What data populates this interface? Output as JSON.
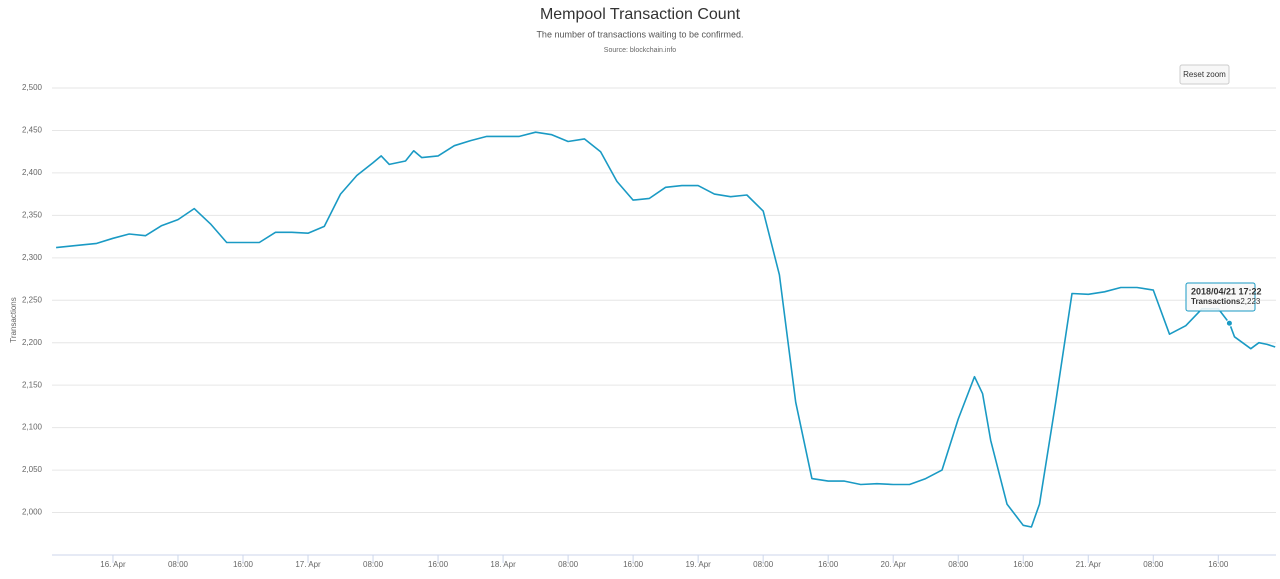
{
  "chart_data": {
    "type": "line",
    "title": "Mempool Transaction Count",
    "subtitle": "The number of transactions waiting to be confirmed.",
    "source": "Source: blockchain.info",
    "ylabel": "Transactions",
    "reset_zoom": "Reset zoom",
    "grid": true,
    "xlim": [
      "2018-04-15T16:30",
      "2018-04-21T23:06"
    ],
    "xticks": [
      {
        "value": "2018-04-16T00:00",
        "label": "16. Apr"
      },
      {
        "value": "2018-04-16T08:00",
        "label": "08:00"
      },
      {
        "value": "2018-04-16T16:00",
        "label": "16:00"
      },
      {
        "value": "2018-04-17T00:00",
        "label": "17. Apr"
      },
      {
        "value": "2018-04-17T08:00",
        "label": "08:00"
      },
      {
        "value": "2018-04-17T16:00",
        "label": "16:00"
      },
      {
        "value": "2018-04-18T00:00",
        "label": "18. Apr"
      },
      {
        "value": "2018-04-18T08:00",
        "label": "08:00"
      },
      {
        "value": "2018-04-18T16:00",
        "label": "16:00"
      },
      {
        "value": "2018-04-19T00:00",
        "label": "19. Apr"
      },
      {
        "value": "2018-04-19T08:00",
        "label": "08:00"
      },
      {
        "value": "2018-04-19T16:00",
        "label": "16:00"
      },
      {
        "value": "2018-04-20T00:00",
        "label": "20. Apr"
      },
      {
        "value": "2018-04-20T08:00",
        "label": "08:00"
      },
      {
        "value": "2018-04-20T16:00",
        "label": "16:00"
      },
      {
        "value": "2018-04-21T00:00",
        "label": "21. Apr"
      },
      {
        "value": "2018-04-21T08:00",
        "label": "08:00"
      },
      {
        "value": "2018-04-21T16:00",
        "label": "16:00"
      }
    ],
    "ylim": [
      1950,
      2500
    ],
    "yticks": [
      {
        "value": 2000,
        "label": "2,000"
      },
      {
        "value": 2050,
        "label": "2,050"
      },
      {
        "value": 2100,
        "label": "2,100"
      },
      {
        "value": 2150,
        "label": "2,150"
      },
      {
        "value": 2200,
        "label": "2,200"
      },
      {
        "value": 2250,
        "label": "2,250"
      },
      {
        "value": 2300,
        "label": "2,300"
      },
      {
        "value": 2350,
        "label": "2,350"
      },
      {
        "value": 2400,
        "label": "2,400"
      },
      {
        "value": 2450,
        "label": "2,450"
      },
      {
        "value": 2500,
        "label": "2,500"
      }
    ],
    "x": [
      "2018-04-15T17:00",
      "2018-04-15T20:00",
      "2018-04-15T22:00",
      "2018-04-16T00:00",
      "2018-04-16T02:00",
      "2018-04-16T04:00",
      "2018-04-16T06:00",
      "2018-04-16T08:00",
      "2018-04-16T10:00",
      "2018-04-16T12:00",
      "2018-04-16T14:00",
      "2018-04-16T16:00",
      "2018-04-16T18:00",
      "2018-04-16T20:00",
      "2018-04-16T22:00",
      "2018-04-17T00:00",
      "2018-04-17T02:00",
      "2018-04-17T04:00",
      "2018-04-17T06:00",
      "2018-04-17T08:00",
      "2018-04-17T09:00",
      "2018-04-17T10:00",
      "2018-04-17T12:00",
      "2018-04-17T13:00",
      "2018-04-17T14:00",
      "2018-04-17T16:00",
      "2018-04-17T18:00",
      "2018-04-17T20:00",
      "2018-04-17T22:00",
      "2018-04-18T00:00",
      "2018-04-18T02:00",
      "2018-04-18T04:00",
      "2018-04-18T06:00",
      "2018-04-18T08:00",
      "2018-04-18T10:00",
      "2018-04-18T12:00",
      "2018-04-18T14:00",
      "2018-04-18T16:00",
      "2018-04-18T18:00",
      "2018-04-18T20:00",
      "2018-04-18T22:00",
      "2018-04-19T00:00",
      "2018-04-19T02:00",
      "2018-04-19T04:00",
      "2018-04-19T06:00",
      "2018-04-19T08:00",
      "2018-04-19T10:00",
      "2018-04-19T12:00",
      "2018-04-19T14:00",
      "2018-04-19T16:00",
      "2018-04-19T18:00",
      "2018-04-19T20:00",
      "2018-04-19T22:00",
      "2018-04-20T00:00",
      "2018-04-20T02:00",
      "2018-04-20T04:00",
      "2018-04-20T06:00",
      "2018-04-20T08:00",
      "2018-04-20T10:00",
      "2018-04-20T11:00",
      "2018-04-20T12:00",
      "2018-04-20T14:00",
      "2018-04-20T16:00",
      "2018-04-20T17:00",
      "2018-04-20T18:00",
      "2018-04-20T20:00",
      "2018-04-20T22:00",
      "2018-04-21T00:00",
      "2018-04-21T02:00",
      "2018-04-21T04:00",
      "2018-04-21T06:00",
      "2018-04-21T08:00",
      "2018-04-21T10:00",
      "2018-04-21T12:00",
      "2018-04-21T14:00",
      "2018-04-21T16:00",
      "2018-04-21T17:22",
      "2018-04-21T18:00",
      "2018-04-21T20:00",
      "2018-04-21T21:00",
      "2018-04-21T22:00",
      "2018-04-21T23:00"
    ],
    "series": [
      {
        "name": "Transactions",
        "color": "#1a9ac4",
        "values": [
          2312,
          2315,
          2317,
          2323,
          2328,
          2326,
          2338,
          2345,
          2358,
          2340,
          2318,
          2318,
          2318,
          2330,
          2330,
          2329,
          2337,
          2375,
          2397,
          2412,
          2420,
          2410,
          2414,
          2426,
          2418,
          2420,
          2432,
          2438,
          2443,
          2443,
          2443,
          2448,
          2445,
          2437,
          2440,
          2425,
          2390,
          2368,
          2370,
          2383,
          2385,
          2385,
          2375,
          2372,
          2374,
          2355,
          2280,
          2130,
          2040,
          2037,
          2037,
          2033,
          2034,
          2033,
          2033,
          2040,
          2050,
          2110,
          2160,
          2140,
          2085,
          2010,
          1985,
          1983,
          2010,
          2130,
          2258,
          2257,
          2260,
          2265,
          2265,
          2262,
          2210,
          2220,
          2240,
          2240,
          2223,
          2207,
          2193,
          2200,
          2198,
          2195
        ]
      }
    ],
    "tooltip": {
      "title": "2018/04/21 17:22",
      "value": 2223,
      "value_label": "2,223"
    }
  }
}
